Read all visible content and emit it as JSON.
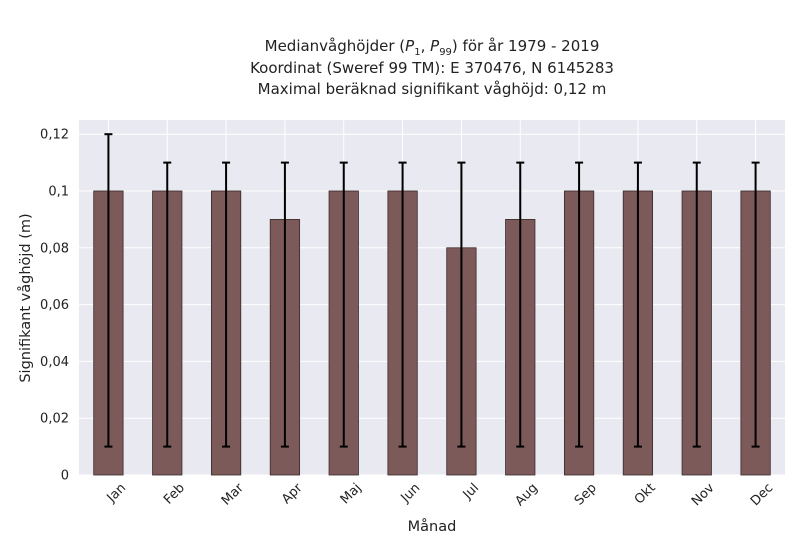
{
  "chart_data": {
    "type": "bar",
    "title_lines": [
      "Medianvåghöjder (P1, P99) för år 1979 - 2019",
      "Koordinat (Sweref 99 TM): E 370476, N 6145283",
      "Maximal beräknad signifikant våghöjd: 0,12 m"
    ],
    "title_p1_sub": "1",
    "title_p99_sub": "99",
    "xlabel": "Månad",
    "ylabel": "Signifikant våghöjd (m)",
    "categories": [
      "Jan",
      "Feb",
      "Mar",
      "Apr",
      "Maj",
      "Jun",
      "Jul",
      "Aug",
      "Sep",
      "Okt",
      "Nov",
      "Dec"
    ],
    "values": [
      0.1,
      0.1,
      0.1,
      0.09,
      0.1,
      0.1,
      0.08,
      0.09,
      0.1,
      0.1,
      0.1,
      0.1
    ],
    "error_low": [
      0.01,
      0.01,
      0.01,
      0.01,
      0.01,
      0.01,
      0.01,
      0.01,
      0.01,
      0.01,
      0.01,
      0.01
    ],
    "error_high": [
      0.12,
      0.11,
      0.11,
      0.11,
      0.11,
      0.11,
      0.11,
      0.11,
      0.11,
      0.11,
      0.11,
      0.11
    ],
    "ylim": [
      0,
      0.125
    ],
    "yticks": [
      0,
      0.02,
      0.04,
      0.06,
      0.08,
      0.1,
      0.12
    ],
    "ytick_labels": [
      "0",
      "0,02",
      "0,04",
      "0,06",
      "0,08",
      "0,1",
      "0,12"
    ],
    "grid": true,
    "colors": {
      "bar": "#7d5a5a",
      "bar_edge": "#3a2a2a",
      "error": "#000000",
      "plot_bg": "#e9e9f1",
      "grid": "#ffffff"
    }
  }
}
